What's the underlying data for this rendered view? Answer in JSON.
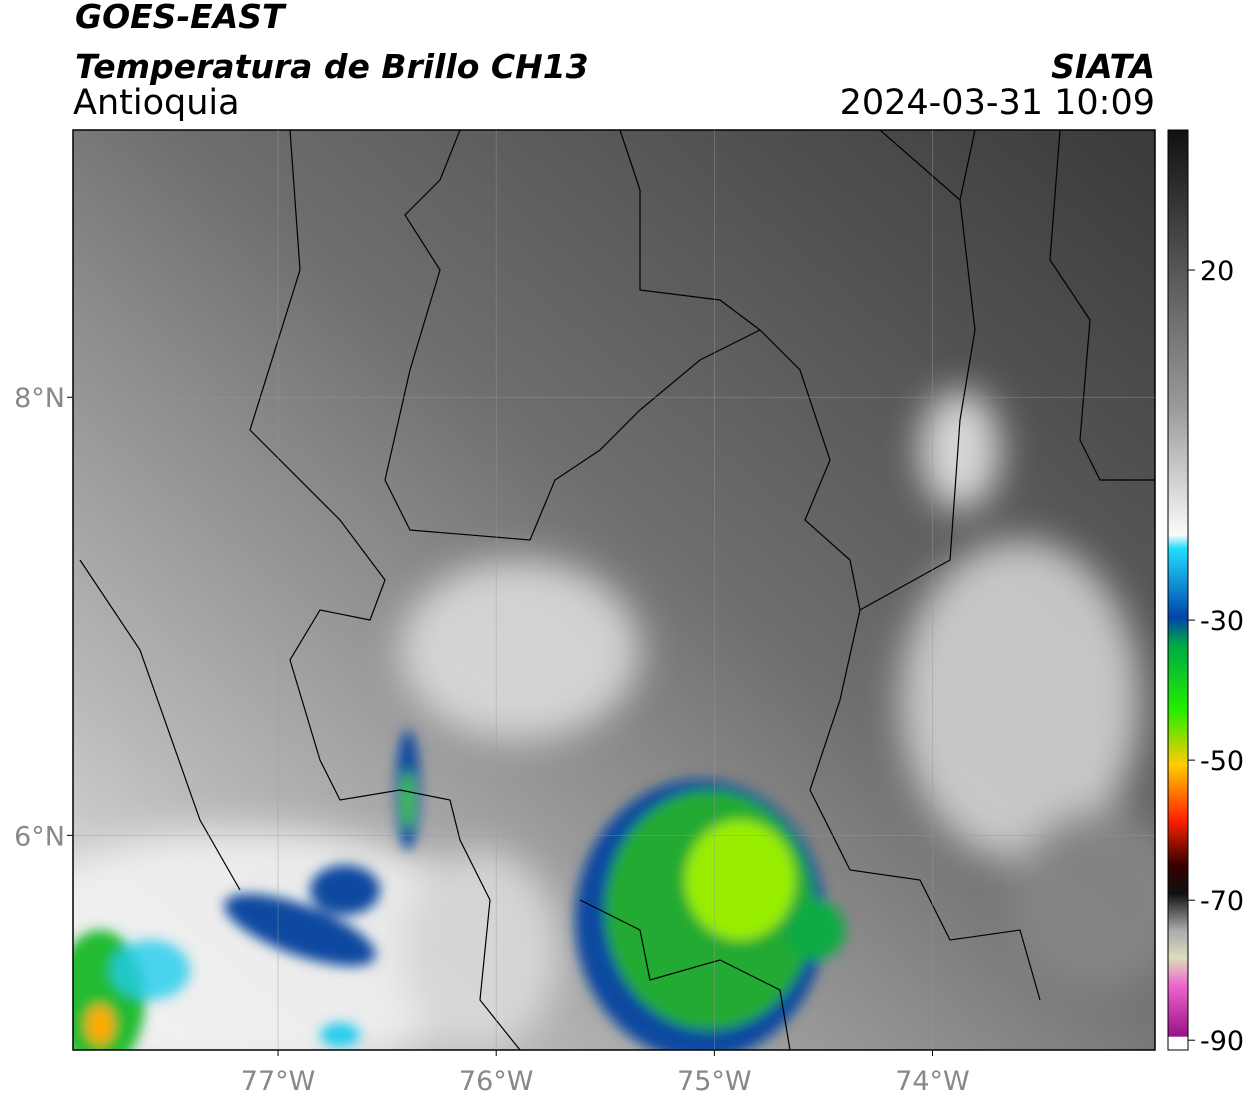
{
  "header": {
    "title": "GOES-EAST",
    "subtitle": "Temperatura de Brillo CH13",
    "region": "Antioquia",
    "source": "SIATA",
    "datetime": "2024-03-31 10:09"
  },
  "map": {
    "xlim": [
      -77.94,
      -72.98
    ],
    "ylim": [
      5.02,
      9.22
    ],
    "xticks": [
      {
        "value": -77,
        "label": "77°W"
      },
      {
        "value": -76,
        "label": "76°W"
      },
      {
        "value": -75,
        "label": "75°W"
      },
      {
        "value": -74,
        "label": "74°W"
      }
    ],
    "yticks": [
      {
        "value": 8,
        "label": "8°N"
      },
      {
        "value": 6,
        "label": "6°N"
      }
    ],
    "grid": true
  },
  "colorbar": {
    "lim": [
      -91.4,
      40
    ],
    "ticks": [
      20,
      -30,
      -50,
      -70,
      -90
    ]
  }
}
